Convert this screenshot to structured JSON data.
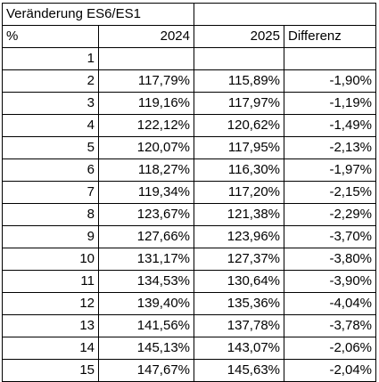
{
  "table": {
    "title": "Veränderung ES6/ES1",
    "headers": [
      "%",
      "2024",
      "2025",
      "Differenz"
    ],
    "rows": [
      [
        "1",
        "",
        "",
        ""
      ],
      [
        "2",
        "117,79%",
        "115,89%",
        "-1,90%"
      ],
      [
        "3",
        "119,16%",
        "117,97%",
        "-1,19%"
      ],
      [
        "4",
        "122,12%",
        "120,62%",
        "-1,49%"
      ],
      [
        "5",
        "120,07%",
        "117,95%",
        "-2,13%"
      ],
      [
        "6",
        "118,27%",
        "116,30%",
        "-1,97%"
      ],
      [
        "7",
        "119,34%",
        "117,20%",
        "-2,15%"
      ],
      [
        "8",
        "123,67%",
        "121,38%",
        "-2,29%"
      ],
      [
        "9",
        "127,66%",
        "123,96%",
        "-3,70%"
      ],
      [
        "10",
        "131,17%",
        "127,37%",
        "-3,80%"
      ],
      [
        "11",
        "134,53%",
        "130,64%",
        "-3,90%"
      ],
      [
        "12",
        "139,40%",
        "135,36%",
        "-4,04%"
      ],
      [
        "13",
        "141,56%",
        "137,78%",
        "-3,78%"
      ],
      [
        "14",
        "145,13%",
        "143,07%",
        "-2,06%"
      ],
      [
        "15",
        "147,67%",
        "145,63%",
        "-2,04%"
      ]
    ]
  }
}
